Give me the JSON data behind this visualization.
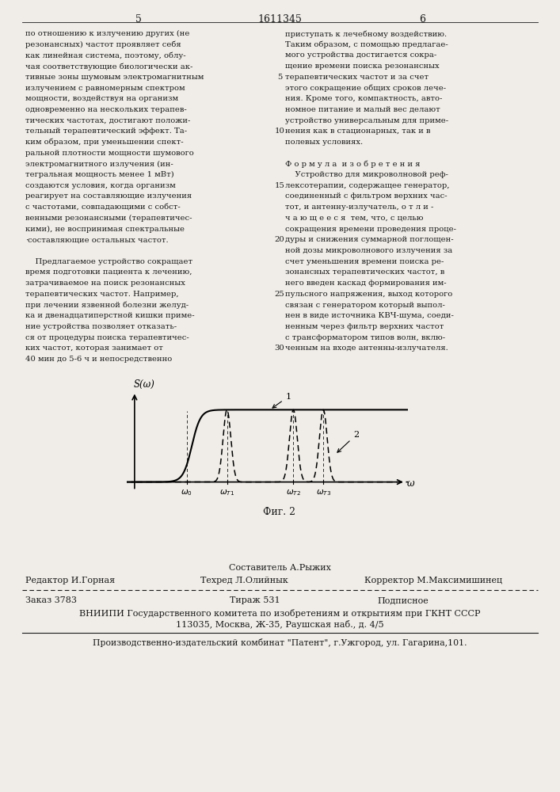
{
  "page_number_left": "5",
  "page_number_center": "1611345",
  "page_number_right": "6",
  "left_text": [
    "по отношению к излучению других (не",
    "резонансных) частот проявляет себя",
    "как линейная система, поэтому, облу-",
    "чая соответствующие биологически ак-",
    "тивные зоны шумовым электромагнитным",
    "излучением с равномерным спектром",
    "мощности, воздействуя на организм",
    "одновременно на нескольких терапев-",
    "тических частотах, достигают положи-",
    "тельный терапевтический эффект. Та-",
    "ким образом, при уменьшении спект-",
    "ральной плотности мощности шумового",
    "электромагнитного излучения (ин-",
    "тегральная мощность менее 1 мВт)",
    "создаются условия, когда организм",
    "реагирует на составляющие излучения",
    "с частотами, совпадающими с собст-",
    "венными резонансными (терапевтичес-",
    "кими), не воспринимая спектральные",
    "·составляющие остальных частот.",
    "",
    "    Предлагаемое устройство сокращает",
    "время подготовки пациента к лечению,",
    "затрачиваемое на поиск резонансных",
    "терапевтических частот. Например,",
    "при лечении язвенной болезни желуд-",
    "ка и двенадцатиперстной кишки приме-",
    "ние устройства позволяет отказать-",
    "ся от процедуры поиска терапевтичес-",
    "ких частот, которая занимает от",
    "40 мин до 5-6 ч и непосредственно"
  ],
  "right_text": [
    "приступать к лечебному воздействию.",
    "Таким образом, с помощью предлагае-",
    "мого устройства достигается сокра-",
    "щение времени поиска резонансных",
    "терапевтических частот и за счет",
    "этого сокращение общих сроков лече-",
    "ния. Кроме того, компактность, авто-",
    "номное питание и малый вес делают",
    "устройство универсальным для приме-",
    "нения как в стационарных, так и в",
    "полевых условиях.",
    "",
    "Ф о р м у л а  и з о б р е т е н и я",
    "    Устройство для микроволновой реф-",
    "лексотерапии, содержащее генератор,",
    "соединенный с фильтром верхних час-",
    "тот, и антенну-излучатель, о т л и -",
    "ч а ю щ е е с я  тем, что, с целью",
    "сокращения времени проведения проце-",
    "дуры и снижения суммарной поглощен-",
    "ной дозы микроволнового излучения за",
    "счет уменьшения времени поиска ре-",
    "зонансных терапевтических частот, в",
    "него введен каскад формирования им-",
    "пульсного напряжения, выход которого",
    "связан с генератором который выпол-",
    "нен в виде источника КВЧ-шума, соеди-",
    "ненным через фильтр верхних частот",
    "с трансформатором типов волн, вклю-",
    "ченным на входе антенны-излучателя."
  ],
  "line_numbers": [
    5,
    10,
    15,
    20,
    25,
    30
  ],
  "footer_line1_center": "Составитель А.Рыжих",
  "footer_line2_left": "Редактор И.Горная",
  "footer_line2_center": "Техред Л.Олийнык",
  "footer_line2_right": "Корректор М.Максимишинец",
  "footer_order": "Заказ 3783",
  "footer_copies": "Тираж 531",
  "footer_subscription": "Подписное",
  "footer_vniipis": "ВНИИПИ Государственного комитета по изобретениям и открытиям при ГКНТ СССР",
  "footer_address": "113035, Москва, Ж-35, Раушская наб., д. 4/5",
  "footer_publisher": "Производственно-издательский комбинат \"Патент\", г.Ужгород, ул. Гагарина,101.",
  "fig_caption": "Фиг. 2",
  "bg_color": "#f0ede8",
  "text_color": "#1a1a1a"
}
